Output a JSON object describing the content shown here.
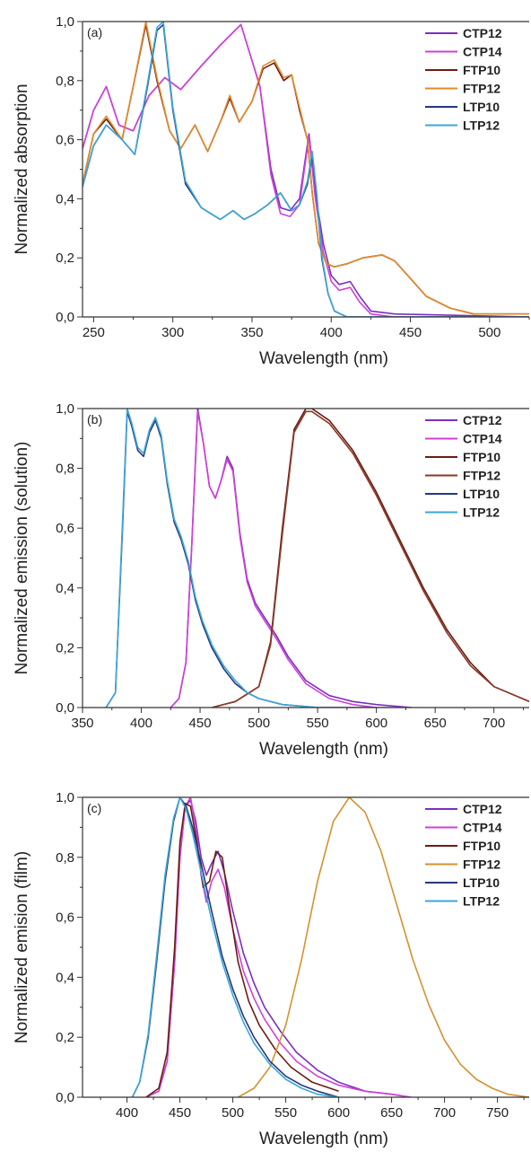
{
  "chart_data": [
    {
      "type": "line",
      "panel_label": "(a)",
      "xlabel": "Wavelength (nm)",
      "ylabel": "Normalized absorption",
      "xlim": [
        243,
        525
      ],
      "ylim": [
        0,
        1.0
      ],
      "xticks": [
        250,
        300,
        350,
        400,
        450,
        500
      ],
      "yticks": [
        "0,0",
        "0,2",
        "0,4",
        "0,6",
        "0,8",
        "1,0"
      ],
      "yticks_values": [
        0,
        0.2,
        0.4,
        0.6,
        0.8,
        1.0
      ],
      "legend_position": "top-right",
      "series": [
        {
          "name": "CTP12",
          "color": "#7b2fbe",
          "x": [
            243,
            250,
            258,
            266,
            275,
            285,
            295,
            305,
            318,
            330,
            343,
            355,
            362,
            368,
            374,
            380,
            386,
            390,
            395,
            400,
            405,
            412,
            418,
            425,
            440,
            525
          ],
          "y": [
            0.57,
            0.7,
            0.78,
            0.65,
            0.63,
            0.75,
            0.81,
            0.77,
            0.85,
            0.92,
            0.99,
            0.78,
            0.5,
            0.37,
            0.36,
            0.4,
            0.62,
            0.42,
            0.25,
            0.14,
            0.11,
            0.12,
            0.07,
            0.02,
            0.01,
            0.0
          ]
        },
        {
          "name": "CTP14",
          "color": "#d040d8",
          "x": [
            243,
            250,
            258,
            266,
            275,
            285,
            295,
            305,
            318,
            330,
            343,
            355,
            362,
            368,
            374,
            380,
            386,
            390,
            395,
            400,
            405,
            412,
            418,
            425,
            440,
            525
          ],
          "y": [
            0.57,
            0.7,
            0.78,
            0.65,
            0.63,
            0.75,
            0.81,
            0.77,
            0.85,
            0.92,
            0.99,
            0.78,
            0.48,
            0.35,
            0.34,
            0.38,
            0.61,
            0.4,
            0.22,
            0.12,
            0.09,
            0.1,
            0.05,
            0.01,
            0.0,
            0.0
          ]
        },
        {
          "name": "FTP10",
          "color": "#6b1e12",
          "x": [
            243,
            250,
            258,
            268,
            275,
            283,
            290,
            298,
            305,
            314,
            322,
            330,
            336,
            342,
            350,
            357,
            364,
            370,
            375,
            380,
            385,
            388,
            392,
            397,
            402,
            410,
            420,
            432,
            440,
            450,
            460,
            475,
            490,
            505,
            525
          ],
          "y": [
            0.45,
            0.62,
            0.67,
            0.6,
            0.78,
            0.99,
            0.8,
            0.63,
            0.57,
            0.65,
            0.56,
            0.66,
            0.74,
            0.66,
            0.73,
            0.84,
            0.86,
            0.8,
            0.82,
            0.7,
            0.6,
            0.42,
            0.25,
            0.18,
            0.17,
            0.18,
            0.2,
            0.21,
            0.19,
            0.13,
            0.07,
            0.03,
            0.01,
            0.01,
            0.01
          ]
        },
        {
          "name": "FTP12",
          "color": "#e38a2a",
          "x": [
            243,
            250,
            258,
            268,
            275,
            283,
            290,
            298,
            305,
            314,
            322,
            330,
            336,
            342,
            350,
            357,
            364,
            370,
            375,
            380,
            385,
            388,
            392,
            397,
            402,
            410,
            420,
            432,
            440,
            450,
            460,
            475,
            490,
            505,
            525
          ],
          "y": [
            0.45,
            0.62,
            0.68,
            0.6,
            0.78,
            1.0,
            0.81,
            0.63,
            0.57,
            0.65,
            0.56,
            0.66,
            0.75,
            0.66,
            0.73,
            0.85,
            0.87,
            0.81,
            0.82,
            0.71,
            0.6,
            0.42,
            0.25,
            0.18,
            0.17,
            0.18,
            0.2,
            0.21,
            0.19,
            0.13,
            0.07,
            0.03,
            0.01,
            0.01,
            0.01
          ]
        },
        {
          "name": "LTP10",
          "color": "#27367f",
          "x": [
            243,
            250,
            258,
            268,
            276,
            284,
            290,
            294,
            300,
            308,
            318,
            330,
            338,
            345,
            352,
            360,
            368,
            375,
            380,
            385,
            388,
            391,
            394,
            398,
            402,
            410,
            525
          ],
          "y": [
            0.44,
            0.58,
            0.65,
            0.6,
            0.55,
            0.78,
            0.97,
            0.99,
            0.7,
            0.45,
            0.37,
            0.33,
            0.36,
            0.33,
            0.35,
            0.38,
            0.42,
            0.36,
            0.38,
            0.45,
            0.55,
            0.4,
            0.2,
            0.08,
            0.02,
            0.0,
            0.0
          ]
        },
        {
          "name": "LTP12",
          "color": "#3aa8d6",
          "x": [
            243,
            250,
            258,
            268,
            276,
            284,
            290,
            294,
            300,
            308,
            318,
            330,
            338,
            345,
            352,
            360,
            368,
            375,
            380,
            385,
            388,
            391,
            394,
            398,
            402,
            410,
            525
          ],
          "y": [
            0.44,
            0.58,
            0.65,
            0.6,
            0.55,
            0.79,
            0.98,
            1.0,
            0.71,
            0.46,
            0.37,
            0.33,
            0.36,
            0.33,
            0.35,
            0.38,
            0.42,
            0.36,
            0.38,
            0.46,
            0.56,
            0.41,
            0.21,
            0.08,
            0.02,
            0.0,
            0.0
          ]
        }
      ]
    },
    {
      "type": "line",
      "panel_label": "(b)",
      "xlabel": "Wavelength (nm)",
      "ylabel": "Normalized emission (solution)",
      "xlim": [
        350,
        730
      ],
      "ylim": [
        0,
        1.0
      ],
      "xticks": [
        350,
        400,
        450,
        500,
        550,
        600,
        650,
        700
      ],
      "yticks": [
        "0,0",
        "0,2",
        "0,4",
        "0,6",
        "0,8",
        "1,0"
      ],
      "yticks_values": [
        0,
        0.2,
        0.4,
        0.6,
        0.8,
        1.0
      ],
      "legend_position": "top-right",
      "series": [
        {
          "name": "CTP12",
          "color": "#7b2fbe",
          "x": [
            425,
            432,
            438,
            443,
            448,
            453,
            458,
            463,
            468,
            473,
            478,
            484,
            490,
            497,
            505,
            515,
            525,
            540,
            560,
            580,
            600,
            630
          ],
          "y": [
            0.0,
            0.03,
            0.15,
            0.55,
            1.0,
            0.88,
            0.74,
            0.7,
            0.76,
            0.84,
            0.8,
            0.58,
            0.43,
            0.35,
            0.3,
            0.24,
            0.17,
            0.09,
            0.04,
            0.02,
            0.01,
            0.0
          ]
        },
        {
          "name": "CTP14",
          "color": "#d040d8",
          "x": [
            425,
            432,
            438,
            443,
            448,
            453,
            458,
            463,
            468,
            473,
            478,
            484,
            490,
            497,
            505,
            515,
            525,
            540,
            560,
            580,
            600,
            630
          ],
          "y": [
            0.0,
            0.03,
            0.15,
            0.55,
            0.99,
            0.88,
            0.74,
            0.7,
            0.76,
            0.83,
            0.79,
            0.57,
            0.42,
            0.34,
            0.29,
            0.23,
            0.16,
            0.08,
            0.03,
            0.01,
            0.0,
            0.0
          ]
        },
        {
          "name": "FTP10",
          "color": "#6b1e12",
          "x": [
            460,
            480,
            500,
            510,
            520,
            530,
            540,
            545,
            560,
            580,
            600,
            620,
            640,
            660,
            680,
            700,
            730
          ],
          "y": [
            0.0,
            0.02,
            0.07,
            0.22,
            0.6,
            0.93,
            1.0,
            1.0,
            0.96,
            0.86,
            0.72,
            0.56,
            0.4,
            0.26,
            0.15,
            0.07,
            0.02
          ]
        },
        {
          "name": "FTP12",
          "color": "#8a3a2a",
          "x": [
            460,
            480,
            500,
            510,
            520,
            530,
            540,
            545,
            560,
            580,
            600,
            620,
            640,
            660,
            680,
            700,
            730
          ],
          "y": [
            0.0,
            0.02,
            0.07,
            0.21,
            0.58,
            0.92,
            0.99,
            0.99,
            0.95,
            0.85,
            0.71,
            0.55,
            0.39,
            0.25,
            0.14,
            0.07,
            0.02
          ]
        },
        {
          "name": "LTP10",
          "color": "#27367f",
          "x": [
            370,
            378,
            384,
            388,
            392,
            397,
            402,
            407,
            412,
            417,
            422,
            428,
            434,
            440,
            446,
            452,
            460,
            470,
            480,
            490,
            500,
            520,
            550,
            580,
            600
          ],
          "y": [
            0.0,
            0.05,
            0.6,
            0.99,
            0.94,
            0.86,
            0.84,
            0.92,
            0.96,
            0.9,
            0.75,
            0.62,
            0.56,
            0.48,
            0.36,
            0.28,
            0.2,
            0.13,
            0.08,
            0.05,
            0.03,
            0.01,
            0.0,
            0.0,
            0.0
          ]
        },
        {
          "name": "LTP12",
          "color": "#3aa8d6",
          "x": [
            370,
            378,
            384,
            388,
            392,
            397,
            402,
            407,
            412,
            417,
            422,
            428,
            434,
            440,
            446,
            452,
            460,
            470,
            480,
            490,
            500,
            520,
            550,
            580,
            600
          ],
          "y": [
            0.0,
            0.05,
            0.62,
            1.0,
            0.95,
            0.87,
            0.85,
            0.93,
            0.97,
            0.91,
            0.76,
            0.63,
            0.57,
            0.49,
            0.37,
            0.29,
            0.21,
            0.14,
            0.09,
            0.05,
            0.03,
            0.01,
            0.0,
            0.0,
            0.0
          ]
        }
      ]
    },
    {
      "type": "line",
      "panel_label": "(c)",
      "xlabel": "Wavelength (nm)",
      "ylabel": "Normalized emision (film)",
      "xlim": [
        358,
        780
      ],
      "ylim": [
        0,
        1.0
      ],
      "xticks": [
        400,
        450,
        500,
        550,
        600,
        650,
        700,
        750
      ],
      "yticks": [
        "0,0",
        "0,2",
        "0,4",
        "0,6",
        "0,8",
        "1,0"
      ],
      "yticks_values": [
        0,
        0.2,
        0.4,
        0.6,
        0.8,
        1.0
      ],
      "legend_position": "top-right",
      "series": [
        {
          "name": "CTP12",
          "color": "#7b2fbe",
          "x": [
            418,
            430,
            438,
            445,
            450,
            455,
            460,
            465,
            470,
            475,
            480,
            486,
            492,
            500,
            510,
            520,
            530,
            545,
            560,
            580,
            600,
            625,
            650,
            668
          ],
          "y": [
            0.0,
            0.02,
            0.12,
            0.45,
            0.8,
            0.97,
            0.99,
            0.92,
            0.8,
            0.74,
            0.78,
            0.82,
            0.75,
            0.62,
            0.48,
            0.38,
            0.3,
            0.22,
            0.15,
            0.09,
            0.05,
            0.02,
            0.01,
            0.0
          ]
        },
        {
          "name": "CTP14",
          "color": "#d040d8",
          "x": [
            418,
            430,
            438,
            445,
            450,
            455,
            460,
            465,
            470,
            475,
            480,
            486,
            492,
            500,
            510,
            520,
            530,
            545,
            560,
            580,
            600,
            625,
            650,
            668
          ],
          "y": [
            0.0,
            0.02,
            0.12,
            0.45,
            0.8,
            0.97,
            1.0,
            0.9,
            0.74,
            0.65,
            0.72,
            0.76,
            0.7,
            0.56,
            0.42,
            0.33,
            0.26,
            0.18,
            0.12,
            0.07,
            0.04,
            0.02,
            0.01,
            0.0
          ]
        },
        {
          "name": "FTP10",
          "color": "#6b1e12",
          "x": [
            418,
            430,
            438,
            445,
            450,
            455,
            460,
            466,
            472,
            478,
            484,
            490,
            496,
            505,
            515,
            525,
            540,
            555,
            575,
            600
          ],
          "y": [
            0.0,
            0.03,
            0.15,
            0.5,
            0.85,
            0.98,
            0.97,
            0.85,
            0.7,
            0.72,
            0.82,
            0.8,
            0.65,
            0.45,
            0.32,
            0.24,
            0.16,
            0.1,
            0.05,
            0.02
          ]
        },
        {
          "name": "FTP12",
          "color": "#d4922e",
          "x": [
            505,
            520,
            535,
            550,
            565,
            580,
            595,
            610,
            625,
            640,
            655,
            670,
            685,
            700,
            715,
            730,
            745,
            760,
            780
          ],
          "y": [
            0.0,
            0.03,
            0.1,
            0.24,
            0.46,
            0.72,
            0.92,
            1.0,
            0.95,
            0.82,
            0.64,
            0.46,
            0.31,
            0.19,
            0.11,
            0.06,
            0.03,
            0.01,
            0.0
          ]
        },
        {
          "name": "LTP10",
          "color": "#27367f",
          "x": [
            405,
            412,
            420,
            428,
            436,
            444,
            450,
            456,
            462,
            470,
            480,
            490,
            500,
            510,
            520,
            535,
            550,
            565,
            580,
            600
          ],
          "y": [
            0.0,
            0.05,
            0.2,
            0.45,
            0.72,
            0.92,
            1.0,
            0.97,
            0.9,
            0.78,
            0.62,
            0.47,
            0.36,
            0.27,
            0.2,
            0.12,
            0.07,
            0.04,
            0.02,
            0.0
          ]
        },
        {
          "name": "LTP12",
          "color": "#3aa8d6",
          "x": [
            405,
            412,
            420,
            428,
            436,
            444,
            450,
            456,
            462,
            470,
            480,
            490,
            500,
            510,
            520,
            535,
            550,
            565,
            580,
            600
          ],
          "y": [
            0.0,
            0.05,
            0.21,
            0.47,
            0.74,
            0.93,
            1.0,
            0.96,
            0.88,
            0.75,
            0.59,
            0.45,
            0.34,
            0.25,
            0.18,
            0.11,
            0.06,
            0.03,
            0.01,
            0.0
          ]
        }
      ]
    }
  ]
}
